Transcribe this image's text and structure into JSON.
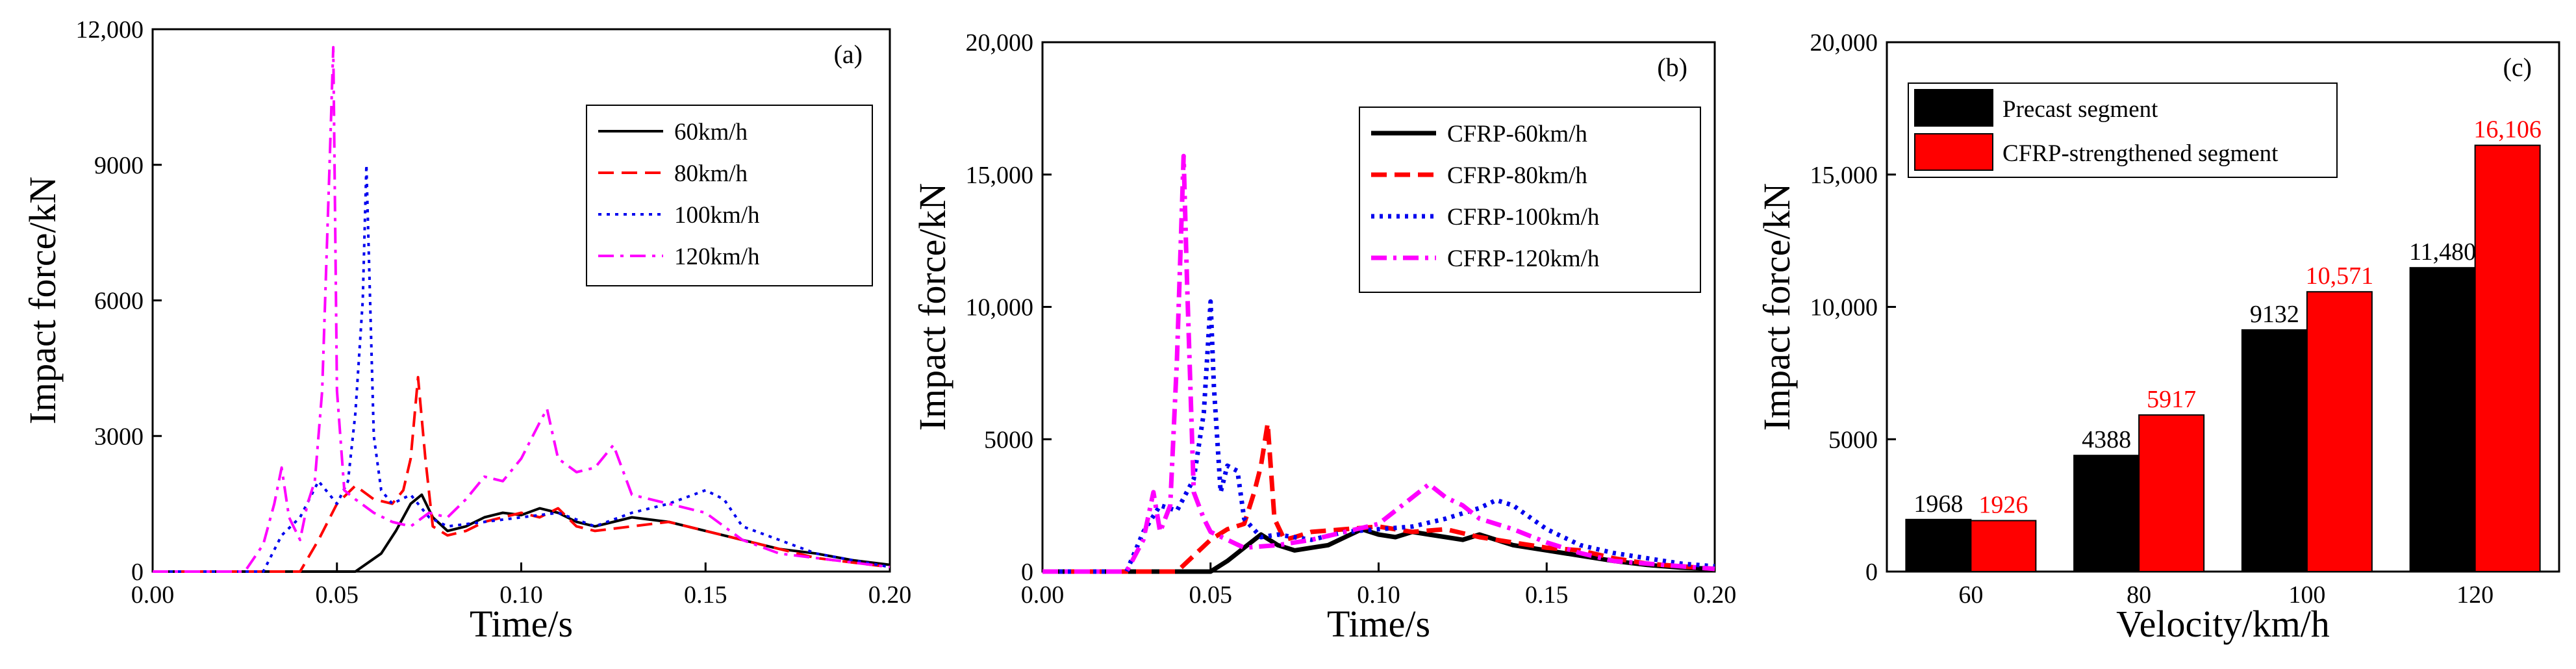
{
  "chart_data": [
    {
      "type": "line",
      "panel_label": "(a)",
      "xlabel": "Time/s",
      "ylabel": "Impact force/kN",
      "xlim": [
        0,
        0.2
      ],
      "ylim": [
        0,
        12000
      ],
      "xticks": [
        0,
        0.05,
        0.1,
        0.15,
        0.2
      ],
      "xtick_labels": [
        "0.00",
        "0.05",
        "0.10",
        "0.15",
        "0.20"
      ],
      "yticks": [
        0,
        3000,
        6000,
        9000,
        12000
      ],
      "ytick_labels": [
        "0",
        "3000",
        "6000",
        "9000",
        "12,000"
      ],
      "legend_position": "top-right",
      "series": [
        {
          "name": "60km/h",
          "color": "#000000",
          "dash": "solid",
          "x": [
            0,
            0.055,
            0.062,
            0.066,
            0.07,
            0.073,
            0.076,
            0.08,
            0.085,
            0.09,
            0.095,
            0.1,
            0.105,
            0.11,
            0.115,
            0.12,
            0.125,
            0.13,
            0.135,
            0.14,
            0.145,
            0.15,
            0.16,
            0.17,
            0.18,
            0.19,
            0.2
          ],
          "y": [
            0,
            0,
            400,
            900,
            1500,
            1700,
            1200,
            900,
            1000,
            1200,
            1300,
            1250,
            1400,
            1300,
            1100,
            1000,
            1100,
            1200,
            1150,
            1100,
            1000,
            900,
            700,
            500,
            400,
            250,
            150
          ]
        },
        {
          "name": "80km/h",
          "color": "#ff0000",
          "dash": "dashed",
          "x": [
            0,
            0.04,
            0.045,
            0.05,
            0.055,
            0.06,
            0.065,
            0.068,
            0.07,
            0.072,
            0.074,
            0.076,
            0.08,
            0.085,
            0.09,
            0.095,
            0.1,
            0.105,
            0.11,
            0.115,
            0.12,
            0.13,
            0.14,
            0.15,
            0.16,
            0.17,
            0.18,
            0.19,
            0.2
          ],
          "y": [
            0,
            0,
            700,
            1500,
            1900,
            1600,
            1500,
            1800,
            2500,
            4300,
            2500,
            1000,
            800,
            900,
            1100,
            1200,
            1300,
            1200,
            1400,
            1000,
            900,
            1000,
            1100,
            900,
            700,
            500,
            300,
            200,
            100
          ]
        },
        {
          "name": "100km/h",
          "color": "#0000ee",
          "dash": "dotted",
          "x": [
            0,
            0.03,
            0.035,
            0.04,
            0.045,
            0.05,
            0.053,
            0.055,
            0.057,
            0.058,
            0.06,
            0.062,
            0.065,
            0.07,
            0.075,
            0.08,
            0.09,
            0.1,
            0.11,
            0.12,
            0.13,
            0.14,
            0.15,
            0.155,
            0.16,
            0.17,
            0.18,
            0.19,
            0.2
          ],
          "y": [
            0,
            0,
            800,
            1200,
            2000,
            1500,
            2000,
            3500,
            6000,
            9000,
            3000,
            1800,
            1500,
            1700,
            1200,
            1000,
            1100,
            1200,
            1300,
            1000,
            1300,
            1500,
            1800,
            1600,
            1000,
            700,
            400,
            250,
            100
          ]
        },
        {
          "name": "120km/h",
          "color": "#ff00ff",
          "dash": "dashdot",
          "x": [
            0,
            0.025,
            0.03,
            0.033,
            0.035,
            0.037,
            0.04,
            0.042,
            0.044,
            0.046,
            0.048,
            0.049,
            0.05,
            0.052,
            0.055,
            0.06,
            0.065,
            0.07,
            0.075,
            0.08,
            0.085,
            0.09,
            0.095,
            0.1,
            0.105,
            0.107,
            0.11,
            0.115,
            0.12,
            0.125,
            0.13,
            0.14,
            0.15,
            0.16,
            0.17,
            0.18,
            0.19,
            0.2
          ],
          "y": [
            0,
            0,
            600,
            1500,
            2300,
            1200,
            700,
            1500,
            2000,
            4000,
            9000,
            11600,
            4000,
            1800,
            1600,
            1300,
            1100,
            1000,
            1300,
            1200,
            1600,
            2100,
            2000,
            2500,
            3300,
            3600,
            2500,
            2200,
            2300,
            2800,
            1700,
            1500,
            1300,
            700,
            400,
            300,
            200,
            100
          ]
        }
      ]
    },
    {
      "type": "line",
      "panel_label": "(b)",
      "xlabel": "Time/s",
      "ylabel": "Impact force/kN",
      "xlim": [
        0,
        0.2
      ],
      "ylim": [
        0,
        20000
      ],
      "xticks": [
        0,
        0.05,
        0.1,
        0.15,
        0.2
      ],
      "xtick_labels": [
        "0.00",
        "0.05",
        "0.10",
        "0.15",
        "0.20"
      ],
      "yticks": [
        0,
        5000,
        10000,
        15000,
        20000
      ],
      "ytick_labels": [
        "0",
        "5000",
        "10,000",
        "15,000",
        "20,000"
      ],
      "legend_position": "top-right",
      "series": [
        {
          "name": "CFRP-60km/h",
          "color": "#000000",
          "dash": "solid",
          "x": [
            0,
            0.05,
            0.055,
            0.06,
            0.065,
            0.07,
            0.075,
            0.08,
            0.085,
            0.09,
            0.095,
            0.1,
            0.105,
            0.11,
            0.115,
            0.12,
            0.125,
            0.13,
            0.14,
            0.15,
            0.16,
            0.17,
            0.18,
            0.19,
            0.2
          ],
          "y": [
            0,
            0,
            400,
            900,
            1400,
            1000,
            800,
            900,
            1000,
            1300,
            1600,
            1400,
            1300,
            1500,
            1400,
            1300,
            1200,
            1400,
            1000,
            800,
            600,
            400,
            250,
            150,
            100
          ]
        },
        {
          "name": "CFRP-80km/h",
          "color": "#ff0000",
          "dash": "dashed",
          "x": [
            0,
            0.04,
            0.045,
            0.05,
            0.055,
            0.06,
            0.063,
            0.065,
            0.067,
            0.069,
            0.072,
            0.075,
            0.08,
            0.09,
            0.1,
            0.11,
            0.12,
            0.13,
            0.14,
            0.15,
            0.16,
            0.17,
            0.18,
            0.19,
            0.2
          ],
          "y": [
            0,
            0,
            600,
            1200,
            1600,
            1800,
            3000,
            4000,
            5600,
            2000,
            1200,
            1300,
            1500,
            1600,
            1700,
            1500,
            1600,
            1300,
            1100,
            900,
            800,
            500,
            300,
            200,
            100
          ]
        },
        {
          "name": "CFRP-100km/h",
          "color": "#0000ee",
          "dash": "dotted",
          "x": [
            0,
            0.025,
            0.03,
            0.035,
            0.04,
            0.045,
            0.048,
            0.05,
            0.051,
            0.053,
            0.055,
            0.058,
            0.06,
            0.065,
            0.07,
            0.08,
            0.09,
            0.1,
            0.11,
            0.12,
            0.13,
            0.135,
            0.14,
            0.15,
            0.16,
            0.17,
            0.18,
            0.19,
            0.2
          ],
          "y": [
            0,
            0,
            1500,
            2500,
            2300,
            3500,
            6000,
            10200,
            7000,
            3000,
            4000,
            3800,
            2000,
            1300,
            1400,
            1200,
            1500,
            1600,
            1700,
            2000,
            2400,
            2700,
            2500,
            1600,
            1000,
            700,
            500,
            300,
            200
          ]
        },
        {
          "name": "CFRP-120km/h",
          "color": "#ff00ff",
          "dash": "dashdot",
          "x": [
            0,
            0.025,
            0.03,
            0.033,
            0.035,
            0.038,
            0.04,
            0.042,
            0.043,
            0.045,
            0.048,
            0.05,
            0.055,
            0.06,
            0.07,
            0.08,
            0.09,
            0.1,
            0.105,
            0.11,
            0.115,
            0.12,
            0.125,
            0.13,
            0.14,
            0.15,
            0.16,
            0.17,
            0.18,
            0.19,
            0.2
          ],
          "y": [
            0,
            0,
            1200,
            3000,
            1500,
            2500,
            8000,
            15700,
            11000,
            3000,
            2000,
            1500,
            1200,
            900,
            1000,
            1200,
            1500,
            1800,
            2300,
            2800,
            3300,
            2800,
            2500,
            2000,
            1600,
            1100,
            700,
            400,
            300,
            200,
            100
          ]
        }
      ]
    },
    {
      "type": "bar",
      "panel_label": "(c)",
      "xlabel": "Velocity/km/h",
      "ylabel": "Impact force/kN",
      "categories": [
        "60",
        "80",
        "100",
        "120"
      ],
      "ylim": [
        0,
        20000
      ],
      "yticks": [
        0,
        5000,
        10000,
        15000,
        20000
      ],
      "ytick_labels": [
        "0",
        "5000",
        "10,000",
        "15,000",
        "20,000"
      ],
      "legend_position": "top-left",
      "series": [
        {
          "name": "Precast segment",
          "color": "#000000",
          "label_color": "#000000",
          "values": [
            1968,
            4388,
            9132,
            11480
          ],
          "labels": [
            "1968",
            "4388",
            "9132",
            "11,480"
          ]
        },
        {
          "name": "CFRP-strengthened segment",
          "color": "#ff0000",
          "label_color": "#ff0000",
          "values": [
            1926,
            5917,
            10571,
            16106
          ],
          "labels": [
            "1926",
            "5917",
            "10,571",
            "16,106"
          ]
        }
      ]
    }
  ]
}
